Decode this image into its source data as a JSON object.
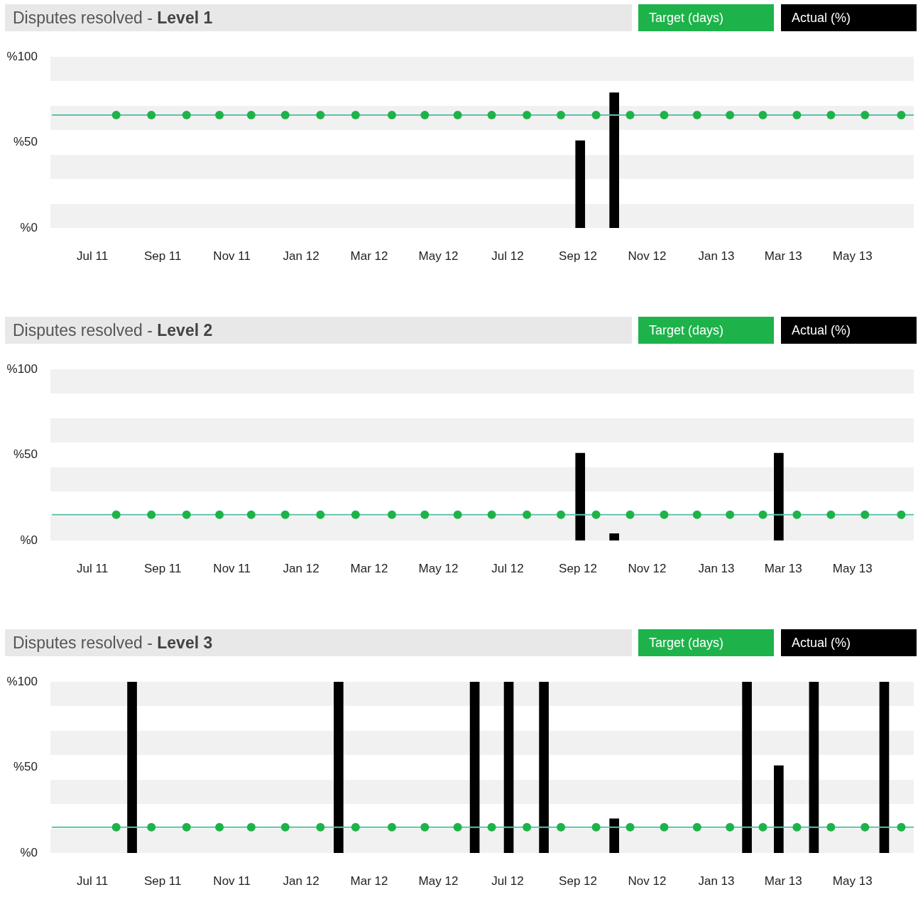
{
  "chart_data": [
    {
      "type": "bar",
      "title": "Disputes resolved -",
      "subtitle": "Level 1",
      "legend": "top right",
      "marker": "circle",
      "xlim": [
        "2011-05-25",
        "2013-06-24"
      ],
      "xticks": [
        {
          "value": "2011-07-01",
          "label": "Jul 11"
        },
        {
          "value": "2011-09-01",
          "label": "Sep 11"
        },
        {
          "value": "2011-11-01",
          "label": "Nov 11"
        },
        {
          "value": "2012-01-01",
          "label": "Jan 12"
        },
        {
          "value": "2012-03-01",
          "label": "Mar 12"
        },
        {
          "value": "2012-05-01",
          "label": "May 12"
        },
        {
          "value": "2012-07-01",
          "label": "Jul 12"
        },
        {
          "value": "2012-09-01",
          "label": "Sep 12"
        },
        {
          "value": "2012-11-01",
          "label": "Nov 12"
        },
        {
          "value": "2013-01-01",
          "label": "Jan 13"
        },
        {
          "value": "2013-03-01",
          "label": "Mar 13"
        },
        {
          "value": "2013-05-01",
          "label": "May 13"
        }
      ],
      "ylim": [
        0,
        100
      ],
      "yticks": [
        {
          "value": 0,
          "label": "%0"
        },
        {
          "value": 50,
          "label": "%50"
        },
        {
          "value": 100,
          "label": "%100"
        }
      ],
      "ref_lines": [
        {
          "axis": "y",
          "value": 66,
          "color": "#5bc2aa"
        }
      ],
      "series": [
        {
          "name": "Target (days)",
          "type": "scatter",
          "color": "#1db34a",
          "x": [
            "2011-07-22",
            "2011-08-22",
            "2011-09-22",
            "2011-10-21",
            "2011-11-18",
            "2011-12-18",
            "2012-01-18",
            "2012-02-18",
            "2012-03-21",
            "2012-04-19",
            "2012-05-18",
            "2012-06-17",
            "2012-07-18",
            "2012-08-17",
            "2012-09-17",
            "2012-10-17",
            "2012-11-16",
            "2012-12-15",
            "2013-01-13",
            "2013-02-11",
            "2013-03-13",
            "2013-04-12",
            "2013-05-12",
            "2013-06-13"
          ],
          "values": [
            66,
            66,
            66,
            66,
            66,
            66,
            66,
            66,
            66,
            66,
            66,
            66,
            66,
            66,
            66,
            66,
            66,
            66,
            66,
            66,
            66,
            66,
            66,
            66
          ]
        },
        {
          "name": "Actual (%)",
          "color": "#000000",
          "x": [
            "2012-09-03",
            "2012-10-03"
          ],
          "values": [
            51,
            79
          ]
        }
      ]
    },
    {
      "type": "bar",
      "title": "Disputes resolved -",
      "subtitle": "Level 2",
      "legend": "top right",
      "marker": "circle",
      "xlim": [
        "2011-05-25",
        "2013-06-24"
      ],
      "xticks": [
        {
          "value": "2011-07-01",
          "label": "Jul 11"
        },
        {
          "value": "2011-09-01",
          "label": "Sep 11"
        },
        {
          "value": "2011-11-01",
          "label": "Nov 11"
        },
        {
          "value": "2012-01-01",
          "label": "Jan 12"
        },
        {
          "value": "2012-03-01",
          "label": "Mar 12"
        },
        {
          "value": "2012-05-01",
          "label": "May 12"
        },
        {
          "value": "2012-07-01",
          "label": "Jul 12"
        },
        {
          "value": "2012-09-01",
          "label": "Sep 12"
        },
        {
          "value": "2012-11-01",
          "label": "Nov 12"
        },
        {
          "value": "2013-01-01",
          "label": "Jan 13"
        },
        {
          "value": "2013-03-01",
          "label": "Mar 13"
        },
        {
          "value": "2013-05-01",
          "label": "May 13"
        }
      ],
      "ylim": [
        0,
        100
      ],
      "yticks": [
        {
          "value": 0,
          "label": "%0"
        },
        {
          "value": 50,
          "label": "%50"
        },
        {
          "value": 100,
          "label": "%100"
        }
      ],
      "ref_lines": [
        {
          "axis": "y",
          "value": 15,
          "color": "#5bc2aa"
        }
      ],
      "series": [
        {
          "name": "Target (days)",
          "type": "scatter",
          "color": "#1db34a",
          "x": [
            "2011-07-22",
            "2011-08-22",
            "2011-09-22",
            "2011-10-21",
            "2011-11-18",
            "2011-12-18",
            "2012-01-18",
            "2012-02-18",
            "2012-03-21",
            "2012-04-19",
            "2012-05-18",
            "2012-06-17",
            "2012-07-18",
            "2012-08-17",
            "2012-09-17",
            "2012-10-17",
            "2012-11-16",
            "2012-12-15",
            "2013-01-13",
            "2013-02-11",
            "2013-03-13",
            "2013-04-12",
            "2013-05-12",
            "2013-06-13"
          ],
          "values": [
            15,
            15,
            15,
            15,
            15,
            15,
            15,
            15,
            15,
            15,
            15,
            15,
            15,
            15,
            15,
            15,
            15,
            15,
            15,
            15,
            15,
            15,
            15,
            15
          ]
        },
        {
          "name": "Actual (%)",
          "color": "#000000",
          "x": [
            "2012-09-03",
            "2012-10-03",
            "2013-02-25"
          ],
          "values": [
            51,
            4,
            51
          ]
        }
      ]
    },
    {
      "type": "bar",
      "title": "Disputes resolved -",
      "subtitle": "Level 3",
      "legend": "top right",
      "marker": "circle",
      "xlim": [
        "2011-05-25",
        "2013-06-24"
      ],
      "xticks": [
        {
          "value": "2011-07-01",
          "label": "Jul 11"
        },
        {
          "value": "2011-09-01",
          "label": "Sep 11"
        },
        {
          "value": "2011-11-01",
          "label": "Nov 11"
        },
        {
          "value": "2012-01-01",
          "label": "Jan 12"
        },
        {
          "value": "2012-03-01",
          "label": "Mar 12"
        },
        {
          "value": "2012-05-01",
          "label": "May 12"
        },
        {
          "value": "2012-07-01",
          "label": "Jul 12"
        },
        {
          "value": "2012-09-01",
          "label": "Sep 12"
        },
        {
          "value": "2012-11-01",
          "label": "Nov 12"
        },
        {
          "value": "2013-01-01",
          "label": "Jan 13"
        },
        {
          "value": "2013-03-01",
          "label": "Mar 13"
        },
        {
          "value": "2013-05-01",
          "label": "May 13"
        }
      ],
      "ylim": [
        0,
        100
      ],
      "yticks": [
        {
          "value": 0,
          "label": "%0"
        },
        {
          "value": 50,
          "label": "%50"
        },
        {
          "value": 100,
          "label": "%100"
        }
      ],
      "ref_lines": [
        {
          "axis": "y",
          "value": 15,
          "color": "#5bc2aa"
        }
      ],
      "series": [
        {
          "name": "Target (days)",
          "type": "scatter",
          "color": "#1db34a",
          "x": [
            "2011-07-22",
            "2011-08-22",
            "2011-09-22",
            "2011-10-21",
            "2011-11-18",
            "2011-12-18",
            "2012-01-18",
            "2012-02-18",
            "2012-03-21",
            "2012-04-19",
            "2012-05-18",
            "2012-06-17",
            "2012-07-18",
            "2012-08-17",
            "2012-09-17",
            "2012-10-17",
            "2012-11-16",
            "2012-12-15",
            "2013-01-13",
            "2013-02-11",
            "2013-03-13",
            "2013-04-12",
            "2013-05-12",
            "2013-06-13"
          ],
          "values": [
            15,
            15,
            15,
            15,
            15,
            15,
            15,
            15,
            15,
            15,
            15,
            15,
            15,
            15,
            15,
            15,
            15,
            15,
            15,
            15,
            15,
            15,
            15,
            15
          ]
        },
        {
          "name": "Actual (%)",
          "color": "#000000",
          "x": [
            "2011-08-05",
            "2012-02-03",
            "2012-06-02",
            "2012-07-02",
            "2012-08-02",
            "2012-10-03",
            "2013-01-28",
            "2013-02-25",
            "2013-03-28",
            "2013-05-29"
          ],
          "values": [
            100,
            100,
            100,
            100,
            100,
            20,
            100,
            51,
            100,
            100
          ]
        }
      ]
    }
  ]
}
